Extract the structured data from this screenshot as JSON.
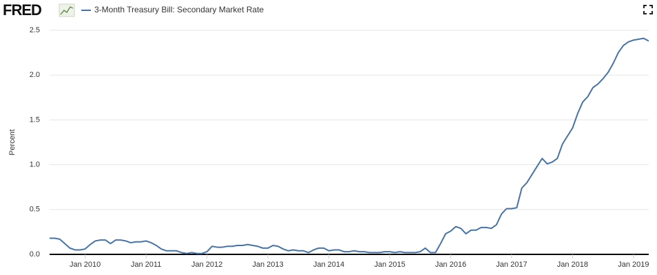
{
  "logo": "FRED",
  "chart_data": {
    "type": "line",
    "y_label": "Percent",
    "x": [
      "2009-06",
      "2009-07",
      "2009-08",
      "2009-09",
      "2009-10",
      "2009-11",
      "2009-12",
      "2010-01",
      "2010-02",
      "2010-03",
      "2010-04",
      "2010-05",
      "2010-06",
      "2010-07",
      "2010-08",
      "2010-09",
      "2010-10",
      "2010-11",
      "2010-12",
      "2011-01",
      "2011-02",
      "2011-03",
      "2011-04",
      "2011-05",
      "2011-06",
      "2011-07",
      "2011-08",
      "2011-09",
      "2011-10",
      "2011-11",
      "2011-12",
      "2012-01",
      "2012-02",
      "2012-03",
      "2012-04",
      "2012-05",
      "2012-06",
      "2012-07",
      "2012-08",
      "2012-09",
      "2012-10",
      "2012-11",
      "2012-12",
      "2013-01",
      "2013-02",
      "2013-03",
      "2013-04",
      "2013-05",
      "2013-06",
      "2013-07",
      "2013-08",
      "2013-09",
      "2013-10",
      "2013-11",
      "2013-12",
      "2014-01",
      "2014-02",
      "2014-03",
      "2014-04",
      "2014-05",
      "2014-06",
      "2014-07",
      "2014-08",
      "2014-09",
      "2014-10",
      "2014-11",
      "2014-12",
      "2015-01",
      "2015-02",
      "2015-03",
      "2015-04",
      "2015-05",
      "2015-06",
      "2015-07",
      "2015-08",
      "2015-09",
      "2015-10",
      "2015-11",
      "2015-12",
      "2016-01",
      "2016-02",
      "2016-03",
      "2016-04",
      "2016-05",
      "2016-06",
      "2016-07",
      "2016-08",
      "2016-09",
      "2016-10",
      "2016-11",
      "2016-12",
      "2017-01",
      "2017-02",
      "2017-03",
      "2017-04",
      "2017-05",
      "2017-06",
      "2017-07",
      "2017-08",
      "2017-09",
      "2017-10",
      "2017-11",
      "2017-12",
      "2018-01",
      "2018-02",
      "2018-03",
      "2018-04",
      "2018-05",
      "2018-06",
      "2018-07",
      "2018-08",
      "2018-09",
      "2018-10",
      "2018-11",
      "2018-12",
      "2019-01",
      "2019-02",
      "2019-03",
      "2019-04"
    ],
    "series": [
      {
        "name": "3-Month Treasury Bill: Secondary Market Rate",
        "color": "#4572a7",
        "values": [
          0.18,
          0.18,
          0.17,
          0.12,
          0.07,
          0.05,
          0.05,
          0.06,
          0.11,
          0.15,
          0.16,
          0.16,
          0.12,
          0.16,
          0.16,
          0.15,
          0.13,
          0.14,
          0.14,
          0.15,
          0.13,
          0.1,
          0.06,
          0.04,
          0.04,
          0.04,
          0.02,
          0.01,
          0.02,
          0.01,
          0.01,
          0.03,
          0.09,
          0.08,
          0.08,
          0.09,
          0.09,
          0.1,
          0.1,
          0.11,
          0.1,
          0.09,
          0.07,
          0.07,
          0.1,
          0.09,
          0.06,
          0.04,
          0.05,
          0.04,
          0.04,
          0.02,
          0.05,
          0.07,
          0.07,
          0.04,
          0.05,
          0.05,
          0.03,
          0.03,
          0.04,
          0.03,
          0.03,
          0.02,
          0.02,
          0.02,
          0.03,
          0.03,
          0.02,
          0.03,
          0.02,
          0.02,
          0.02,
          0.03,
          0.07,
          0.02,
          0.02,
          0.12,
          0.23,
          0.26,
          0.31,
          0.29,
          0.23,
          0.27,
          0.27,
          0.3,
          0.3,
          0.29,
          0.33,
          0.45,
          0.51,
          0.51,
          0.52,
          0.74,
          0.8,
          0.89,
          0.98,
          1.07,
          1.01,
          1.03,
          1.07,
          1.23,
          1.32,
          1.41,
          1.57,
          1.7,
          1.76,
          1.86,
          1.9,
          1.96,
          2.03,
          2.13,
          2.25,
          2.33,
          2.37,
          2.39,
          2.4,
          2.41,
          2.38
        ]
      }
    ],
    "ylim": [
      0,
      2.5
    ],
    "yticks": [
      {
        "value": 0,
        "label": "0.0"
      },
      0.5,
      {
        "value": 1,
        "label": "1.0"
      },
      1.5,
      {
        "value": 2,
        "label": "2.0"
      },
      2.5
    ],
    "xticks": [
      {
        "value": "2010-01",
        "label": "Jan 2010"
      },
      {
        "value": "2011-01",
        "label": "Jan 2011"
      },
      {
        "value": "2012-01",
        "label": "Jan 2012"
      },
      {
        "value": "2013-01",
        "label": "Jan 2013"
      },
      {
        "value": "2014-01",
        "label": "Jan 2014"
      },
      {
        "value": "2015-01",
        "label": "Jan 2015"
      },
      {
        "value": "2016-01",
        "label": "Jan 2016"
      },
      {
        "value": "2017-01",
        "label": "Jan 2017"
      },
      {
        "value": "2018-01",
        "label": "Jan 2018"
      },
      {
        "value": "2019-01",
        "label": "Jan 2019"
      }
    ],
    "grid": true
  }
}
